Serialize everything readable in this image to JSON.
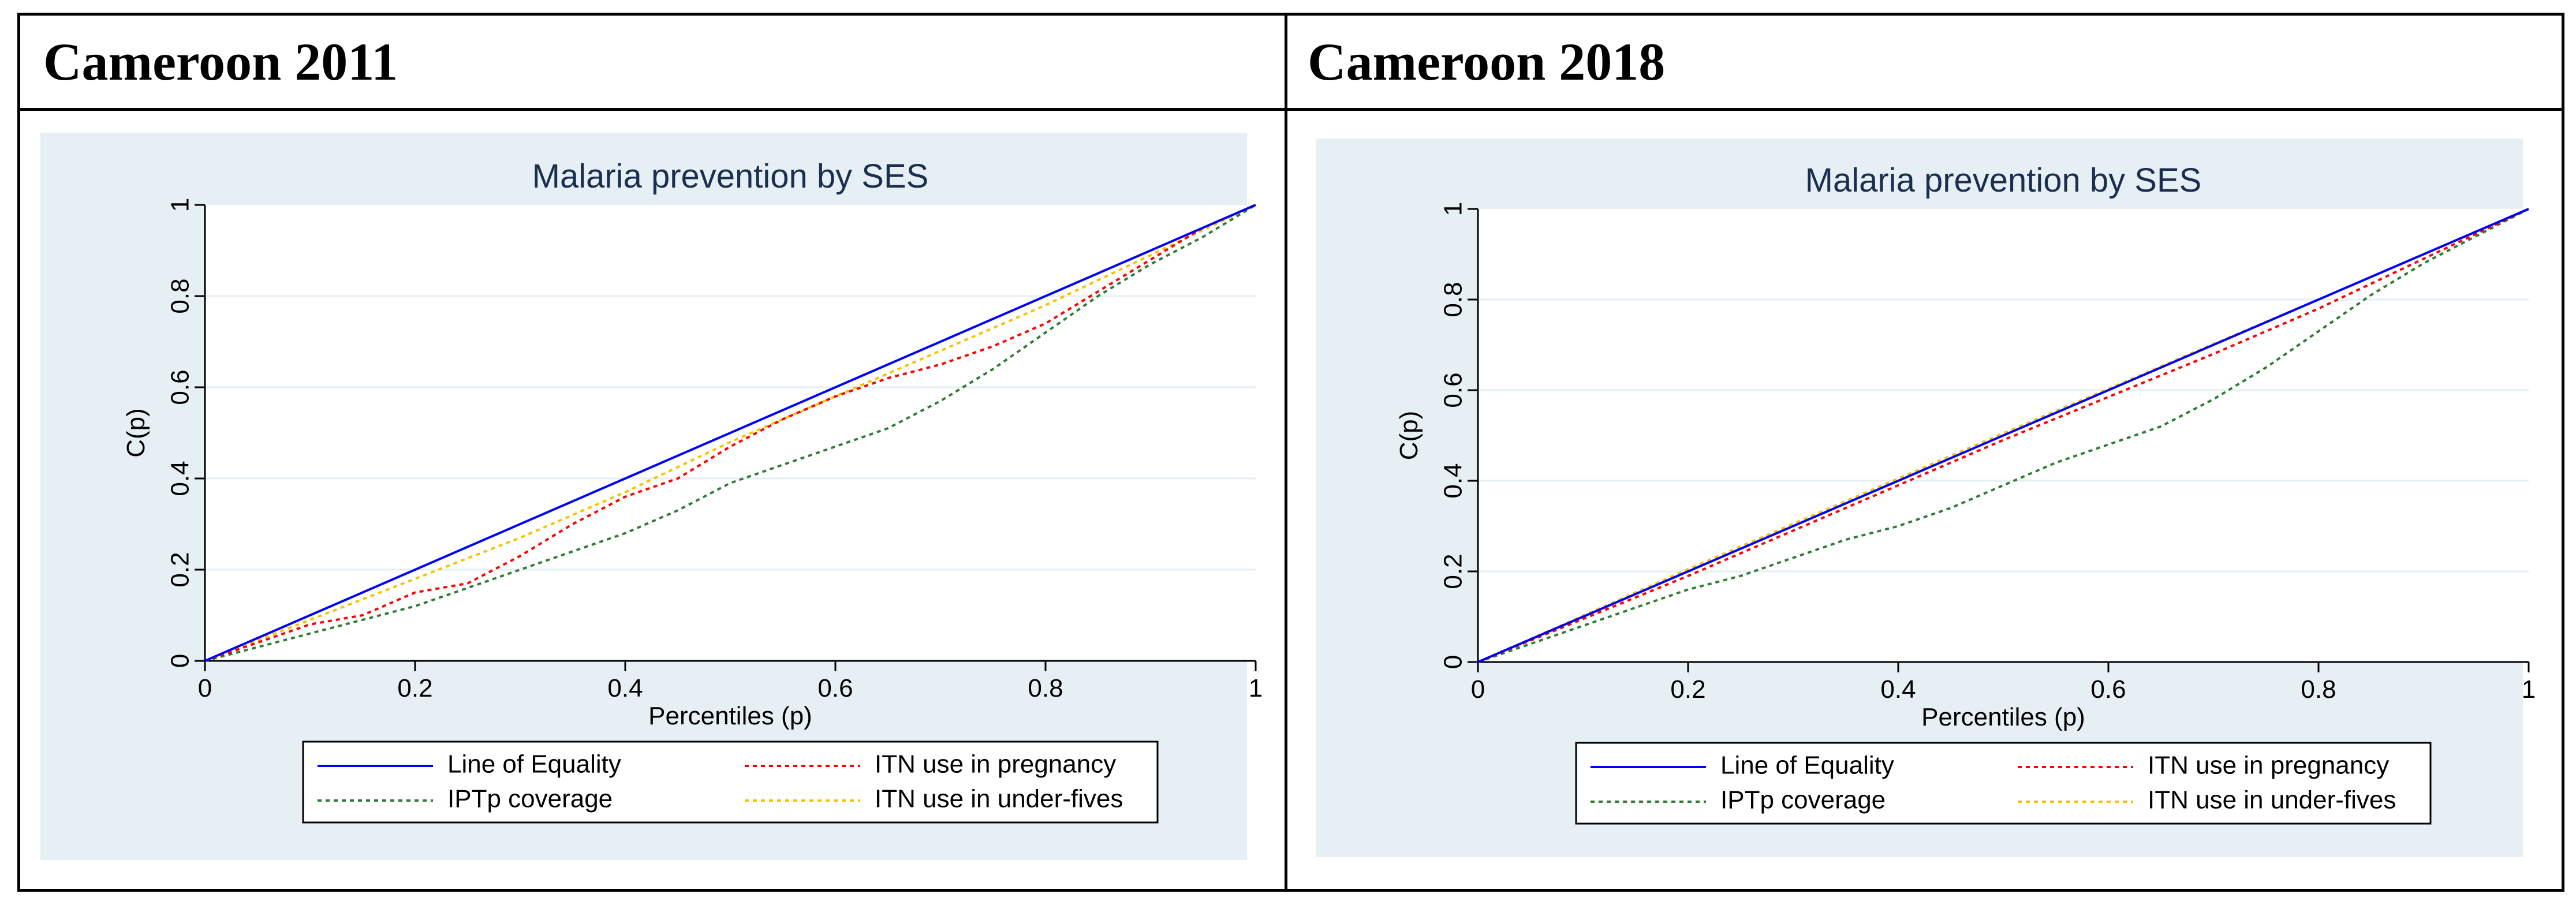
{
  "panels": [
    {
      "heading": "Cameroon 2011"
    },
    {
      "heading": "Cameroon 2018"
    }
  ],
  "chart_data": [
    {
      "type": "line",
      "title": "Malaria prevention by SES",
      "xlabel": "Percentiles (p)",
      "ylabel": "C(p)",
      "xlim": [
        0,
        1
      ],
      "ylim": [
        0,
        1
      ],
      "xticks": [
        "0",
        "0.2",
        "0.4",
        "0.6",
        "0.8",
        "1"
      ],
      "yticks": [
        "0",
        "0.2",
        "0.4",
        "0.6",
        "0.8",
        "1"
      ],
      "grid": true,
      "legend_position": "bottom",
      "series": [
        {
          "name": "Line of Equality",
          "color": "#0000ff",
          "style": "solid",
          "x": [
            0,
            1
          ],
          "y": [
            0,
            1
          ]
        },
        {
          "name": "ITN use in pregnancy",
          "color": "#ff0000",
          "style": "dotted",
          "x": [
            0,
            0.05,
            0.1,
            0.15,
            0.2,
            0.25,
            0.3,
            0.35,
            0.4,
            0.45,
            0.5,
            0.55,
            0.6,
            0.65,
            0.7,
            0.75,
            0.8,
            0.85,
            0.9,
            0.95,
            1
          ],
          "y": [
            0,
            0.04,
            0.08,
            0.1,
            0.15,
            0.17,
            0.23,
            0.3,
            0.36,
            0.4,
            0.47,
            0.53,
            0.58,
            0.62,
            0.65,
            0.69,
            0.74,
            0.81,
            0.88,
            0.95,
            1
          ]
        },
        {
          "name": "IPTp coverage",
          "color": "#2e7d32",
          "style": "dotted",
          "x": [
            0,
            0.05,
            0.1,
            0.15,
            0.2,
            0.25,
            0.3,
            0.35,
            0.4,
            0.45,
            0.5,
            0.55,
            0.6,
            0.65,
            0.7,
            0.75,
            0.8,
            0.85,
            0.9,
            0.95,
            1
          ],
          "y": [
            0,
            0.03,
            0.06,
            0.09,
            0.12,
            0.16,
            0.2,
            0.24,
            0.28,
            0.33,
            0.39,
            0.43,
            0.47,
            0.51,
            0.57,
            0.64,
            0.72,
            0.8,
            0.87,
            0.93,
            1
          ]
        },
        {
          "name": "ITN use in under-fives",
          "color": "#f5c400",
          "style": "dotted",
          "x": [
            0,
            0.1,
            0.2,
            0.3,
            0.4,
            0.5,
            0.6,
            0.7,
            0.8,
            0.9,
            1
          ],
          "y": [
            0,
            0.09,
            0.18,
            0.27,
            0.37,
            0.48,
            0.58,
            0.68,
            0.78,
            0.89,
            1
          ]
        }
      ]
    },
    {
      "type": "line",
      "title": "Malaria prevention by SES",
      "xlabel": "Percentiles (p)",
      "ylabel": "C(p)",
      "xlim": [
        0,
        1
      ],
      "ylim": [
        0,
        1
      ],
      "xticks": [
        "0",
        "0.2",
        "0.4",
        "0.6",
        "0.8",
        "1"
      ],
      "yticks": [
        "0",
        "0.2",
        "0.4",
        "0.6",
        "0.8",
        "1"
      ],
      "grid": true,
      "legend_position": "bottom",
      "series": [
        {
          "name": "Line of Equality",
          "color": "#0000ff",
          "style": "solid",
          "x": [
            0,
            1
          ],
          "y": [
            0,
            1
          ]
        },
        {
          "name": "ITN use in pregnancy",
          "color": "#ff0000",
          "style": "dotted",
          "x": [
            0,
            0.1,
            0.2,
            0.3,
            0.4,
            0.5,
            0.6,
            0.7,
            0.8,
            0.9,
            1
          ],
          "y": [
            0,
            0.095,
            0.19,
            0.29,
            0.39,
            0.49,
            0.585,
            0.68,
            0.78,
            0.89,
            1
          ]
        },
        {
          "name": "IPTp coverage",
          "color": "#2e7d32",
          "style": "dotted",
          "x": [
            0,
            0.05,
            0.1,
            0.15,
            0.2,
            0.25,
            0.3,
            0.35,
            0.4,
            0.45,
            0.5,
            0.55,
            0.6,
            0.65,
            0.7,
            0.75,
            0.8,
            0.85,
            0.9,
            0.95,
            1
          ],
          "y": [
            0,
            0.04,
            0.08,
            0.12,
            0.16,
            0.19,
            0.23,
            0.27,
            0.3,
            0.34,
            0.39,
            0.44,
            0.48,
            0.52,
            0.58,
            0.65,
            0.73,
            0.81,
            0.88,
            0.94,
            1
          ]
        },
        {
          "name": "ITN use in under-fives",
          "color": "#f5c400",
          "style": "dotted",
          "x": [
            0,
            0.1,
            0.2,
            0.3,
            0.4,
            0.5,
            0.6,
            0.7,
            0.8,
            0.9,
            1
          ],
          "y": [
            0,
            0.102,
            0.205,
            0.305,
            0.405,
            0.505,
            0.603,
            0.702,
            0.8,
            0.9,
            1
          ]
        }
      ]
    }
  ]
}
